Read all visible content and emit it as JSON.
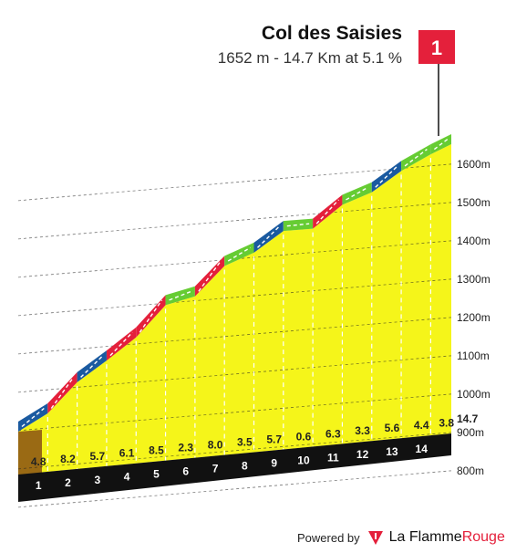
{
  "header": {
    "title": "Col des Saisies",
    "subtitle": "1652 m - 14.7 Km at 5.1 %"
  },
  "summit_flag": {
    "label": "1",
    "color": "#e4203b"
  },
  "chart_data": {
    "type": "area",
    "title": "Col des Saisies",
    "subtitle": "1652 m - 14.7 Km at 5.1 %",
    "x_unit": "km",
    "y_unit": "m",
    "km_labels": [
      "1",
      "2",
      "3",
      "4",
      "5",
      "6",
      "7",
      "8",
      "9",
      "10",
      "11",
      "12",
      "13",
      "14"
    ],
    "distance_end_label": "14.7",
    "gradients": [
      4.8,
      8.2,
      5.7,
      6.1,
      8.5,
      2.3,
      8.0,
      3.5,
      5.7,
      0.6,
      6.3,
      3.3,
      5.6,
      4.4,
      3.8
    ],
    "gradient_labels": [
      "4.8",
      "8.2",
      "5.7",
      "6.1",
      "8.5",
      "2.3",
      "8.0",
      "3.5",
      "5.7",
      "0.6",
      "6.3",
      "3.3",
      "5.6",
      "4.4",
      "3.8"
    ],
    "segment_lengths_km": [
      1,
      1,
      1,
      1,
      1,
      1,
      1,
      1,
      1,
      1,
      1,
      1,
      1,
      1,
      0.7
    ],
    "start_altitude": 902,
    "summit_altitude": 1652,
    "altitude_ticks": [
      800,
      900,
      1000,
      1100,
      1200,
      1300,
      1400,
      1500,
      1600
    ],
    "altitude_tick_labels": [
      "800m",
      "900m",
      "1000m",
      "1100m",
      "1200m",
      "1300m",
      "1400m",
      "1500m",
      "1600m"
    ],
    "difficulty_colors": {
      "easy": "#66cc33",
      "medium": "#1a5aa0",
      "hard": "#e4203b"
    },
    "fill_color": "#f5f51a",
    "base_color": "#111111",
    "start_wall_color": "#9a6a14"
  },
  "footer": {
    "powered_label": "Powered by",
    "brand_part1": "La Flamme",
    "brand_part2": "Rouge",
    "logo_icon": "la-flamme-rouge-logo-icon"
  }
}
